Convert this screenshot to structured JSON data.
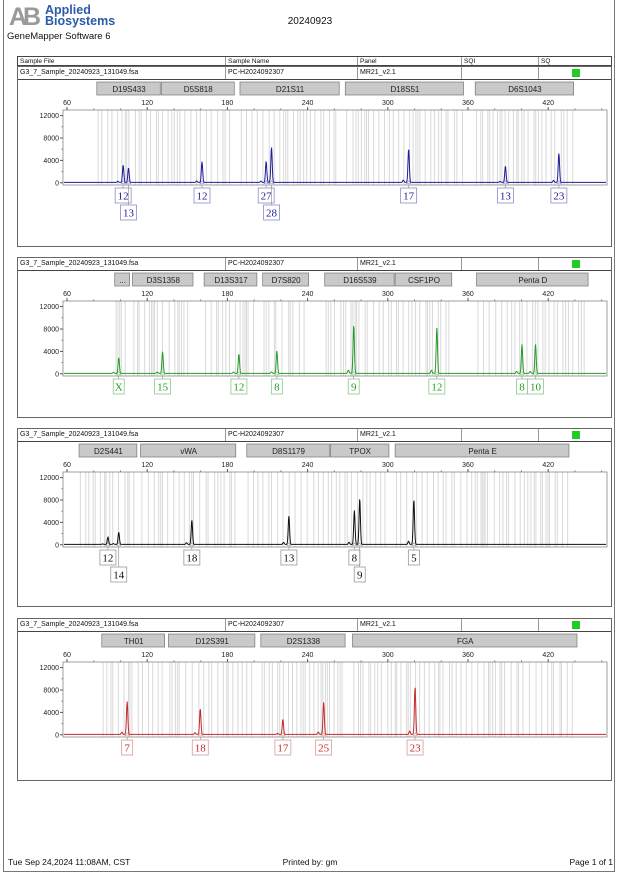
{
  "header": {
    "logo_mark": "AB",
    "logo_text": "Applied Biosystems",
    "software": "GeneMapper Software 6",
    "title": "20240923"
  },
  "table_header": {
    "sample_file": "Sample File",
    "sample_name": "Sample Name",
    "panel": "Panel",
    "sqi": "SQI",
    "sq": "SQ"
  },
  "footer": {
    "datetime": "Tue Sep 24,2024 11:08AM, CST",
    "printed_by": "Printed by: gm",
    "page": "Page 1 of 1"
  },
  "colors": {
    "sq_pass": "#22cc22",
    "bin_fill": "#c9c9c9",
    "bin_line": "#d9d9d9"
  },
  "chart_data": [
    {
      "type": "line",
      "sample_file": "G3_7_Sample_20240923_131049.fsa",
      "sample_name": "PC-H2024092307",
      "panel": "MR21_v2.1",
      "dye_color": "#1c1c96",
      "label_border": "#8c8cc8",
      "x_ticks": [
        60,
        120,
        180,
        240,
        300,
        360,
        420
      ],
      "y_ticks": [
        0,
        4000,
        8000,
        12000
      ],
      "xlim": [
        57,
        464
      ],
      "ylim": [
        -400,
        13000
      ],
      "bins": [
        {
          "name": "D19S433",
          "range": [
            82.3,
            130.5
          ]
        },
        {
          "name": "D5S818",
          "range": [
            130.5,
            185.9
          ]
        },
        {
          "name": "D21S11",
          "range": [
            189.4,
            264.4
          ]
        },
        {
          "name": "D18S51",
          "range": [
            268.2,
            357.4
          ]
        },
        {
          "name": "D6S1043",
          "range": [
            365.4,
            439.8
          ]
        }
      ],
      "peaks": [
        {
          "allele": "12",
          "size": 102,
          "height": 2900
        },
        {
          "allele": "13",
          "size": 106,
          "height": 2600
        },
        {
          "allele": "12",
          "size": 161,
          "height": 3700
        },
        {
          "allele": "27",
          "size": 209,
          "height": 3300
        },
        {
          "allele": "28",
          "size": 213,
          "height": 6300
        },
        {
          "allele": "17",
          "size": 315.6,
          "height": 6000
        },
        {
          "allele": "13",
          "size": 388,
          "height": 2900
        },
        {
          "allele": "23",
          "size": 428,
          "height": 5200
        }
      ]
    },
    {
      "type": "line",
      "sample_file": "G3_7_Sample_20240923_131049.fsa",
      "sample_name": "PC-H2024092307",
      "panel": "MR21_v2.1",
      "dye_color": "#2a9a2a",
      "label_border": "#8cc88c",
      "x_ticks": [
        60,
        120,
        180,
        240,
        300,
        360,
        420
      ],
      "y_ticks": [
        0,
        4000,
        8000,
        12000
      ],
      "xlim": [
        57,
        464
      ],
      "ylim": [
        -400,
        13000
      ],
      "bins": [
        {
          "name": "...",
          "range": [
            95.7,
            107.6
          ]
        },
        {
          "name": "D3S1358",
          "range": [
            109,
            155
          ]
        },
        {
          "name": "D13S317",
          "range": [
            162.6,
            202.8
          ]
        },
        {
          "name": "D7S820",
          "range": [
            206.4,
            241.5
          ]
        },
        {
          "name": "D16S539",
          "range": [
            252.8,
            305.5
          ]
        },
        {
          "name": "CSF1PO",
          "range": [
            305.5,
            348.6
          ]
        },
        {
          "name": "Penta D",
          "range": [
            366.4,
            450.6
          ]
        }
      ],
      "peaks": [
        {
          "allele": "X",
          "size": 98.7,
          "height": 2800
        },
        {
          "allele": "15",
          "size": 131.5,
          "height": 3900
        },
        {
          "allele": "12",
          "size": 188.6,
          "height": 3450
        },
        {
          "allele": "8",
          "size": 217,
          "height": 4000
        },
        {
          "allele": "9",
          "size": 274.5,
          "height": 8600
        },
        {
          "allele": "12",
          "size": 336.7,
          "height": 8150
        },
        {
          "allele": "8",
          "size": 400.4,
          "height": 5200
        },
        {
          "allele": "10",
          "size": 410.5,
          "height": 5250
        }
      ]
    },
    {
      "type": "line",
      "sample_file": "G3_7_Sample_20240923_131049.fsa",
      "sample_name": "PC-H2024092307",
      "panel": "MR21_v2.1",
      "dye_color": "#111111",
      "label_border": "#999999",
      "x_ticks": [
        60,
        120,
        180,
        240,
        300,
        360,
        420
      ],
      "y_ticks": [
        0,
        4000,
        8000,
        12000
      ],
      "xlim": [
        57,
        464
      ],
      "ylim": [
        -400,
        13000
      ],
      "bins": [
        {
          "name": "D2S441",
          "range": [
            69,
            113
          ]
        },
        {
          "name": "vWA",
          "range": [
            115,
            187
          ]
        },
        {
          "name": "D8S1179",
          "range": [
            194.5,
            257
          ]
        },
        {
          "name": "TPOX",
          "range": [
            257,
            301.6
          ]
        },
        {
          "name": "Penta E",
          "range": [
            305.5,
            436.3
          ]
        }
      ],
      "peaks": [
        {
          "allele": "12",
          "size": 90.6,
          "height": 1300
        },
        {
          "allele": "14",
          "size": 98.7,
          "height": 2200
        },
        {
          "allele": "18",
          "size": 153.4,
          "height": 4400
        },
        {
          "allele": "13",
          "size": 226,
          "height": 5100
        },
        {
          "allele": "8",
          "size": 275,
          "height": 5500
        },
        {
          "allele": "9",
          "size": 279,
          "height": 8200
        },
        {
          "allele": "5",
          "size": 319.5,
          "height": 8000
        }
      ]
    },
    {
      "type": "line",
      "sample_file": "G3_7_Sample_20240923_131049.fsa",
      "sample_name": "PC-H2024092307",
      "panel": "MR21_v2.1",
      "dye_color": "#c42a2a",
      "label_border": "#d89a9a",
      "x_ticks": [
        60,
        120,
        180,
        240,
        300,
        360,
        420
      ],
      "y_ticks": [
        0,
        4000,
        8000,
        12000
      ],
      "xlim": [
        57,
        464
      ],
      "ylim": [
        -400,
        13000
      ],
      "bins": [
        {
          "name": "TH01",
          "range": [
            86,
            133.8
          ]
        },
        {
          "name": "D12S391",
          "range": [
            135.9,
            201.3
          ]
        },
        {
          "name": "D2S1338",
          "range": [
            205,
            268.8
          ]
        },
        {
          "name": "FGA",
          "range": [
            273.6,
            442.3
          ]
        }
      ],
      "peaks": [
        {
          "allele": "7",
          "size": 105,
          "height": 5900
        },
        {
          "allele": "18",
          "size": 159.7,
          "height": 4600
        },
        {
          "allele": "17",
          "size": 221.5,
          "height": 2700
        },
        {
          "allele": "25",
          "size": 252,
          "height": 5750
        },
        {
          "allele": "23",
          "size": 320.4,
          "height": 8500
        }
      ]
    }
  ]
}
